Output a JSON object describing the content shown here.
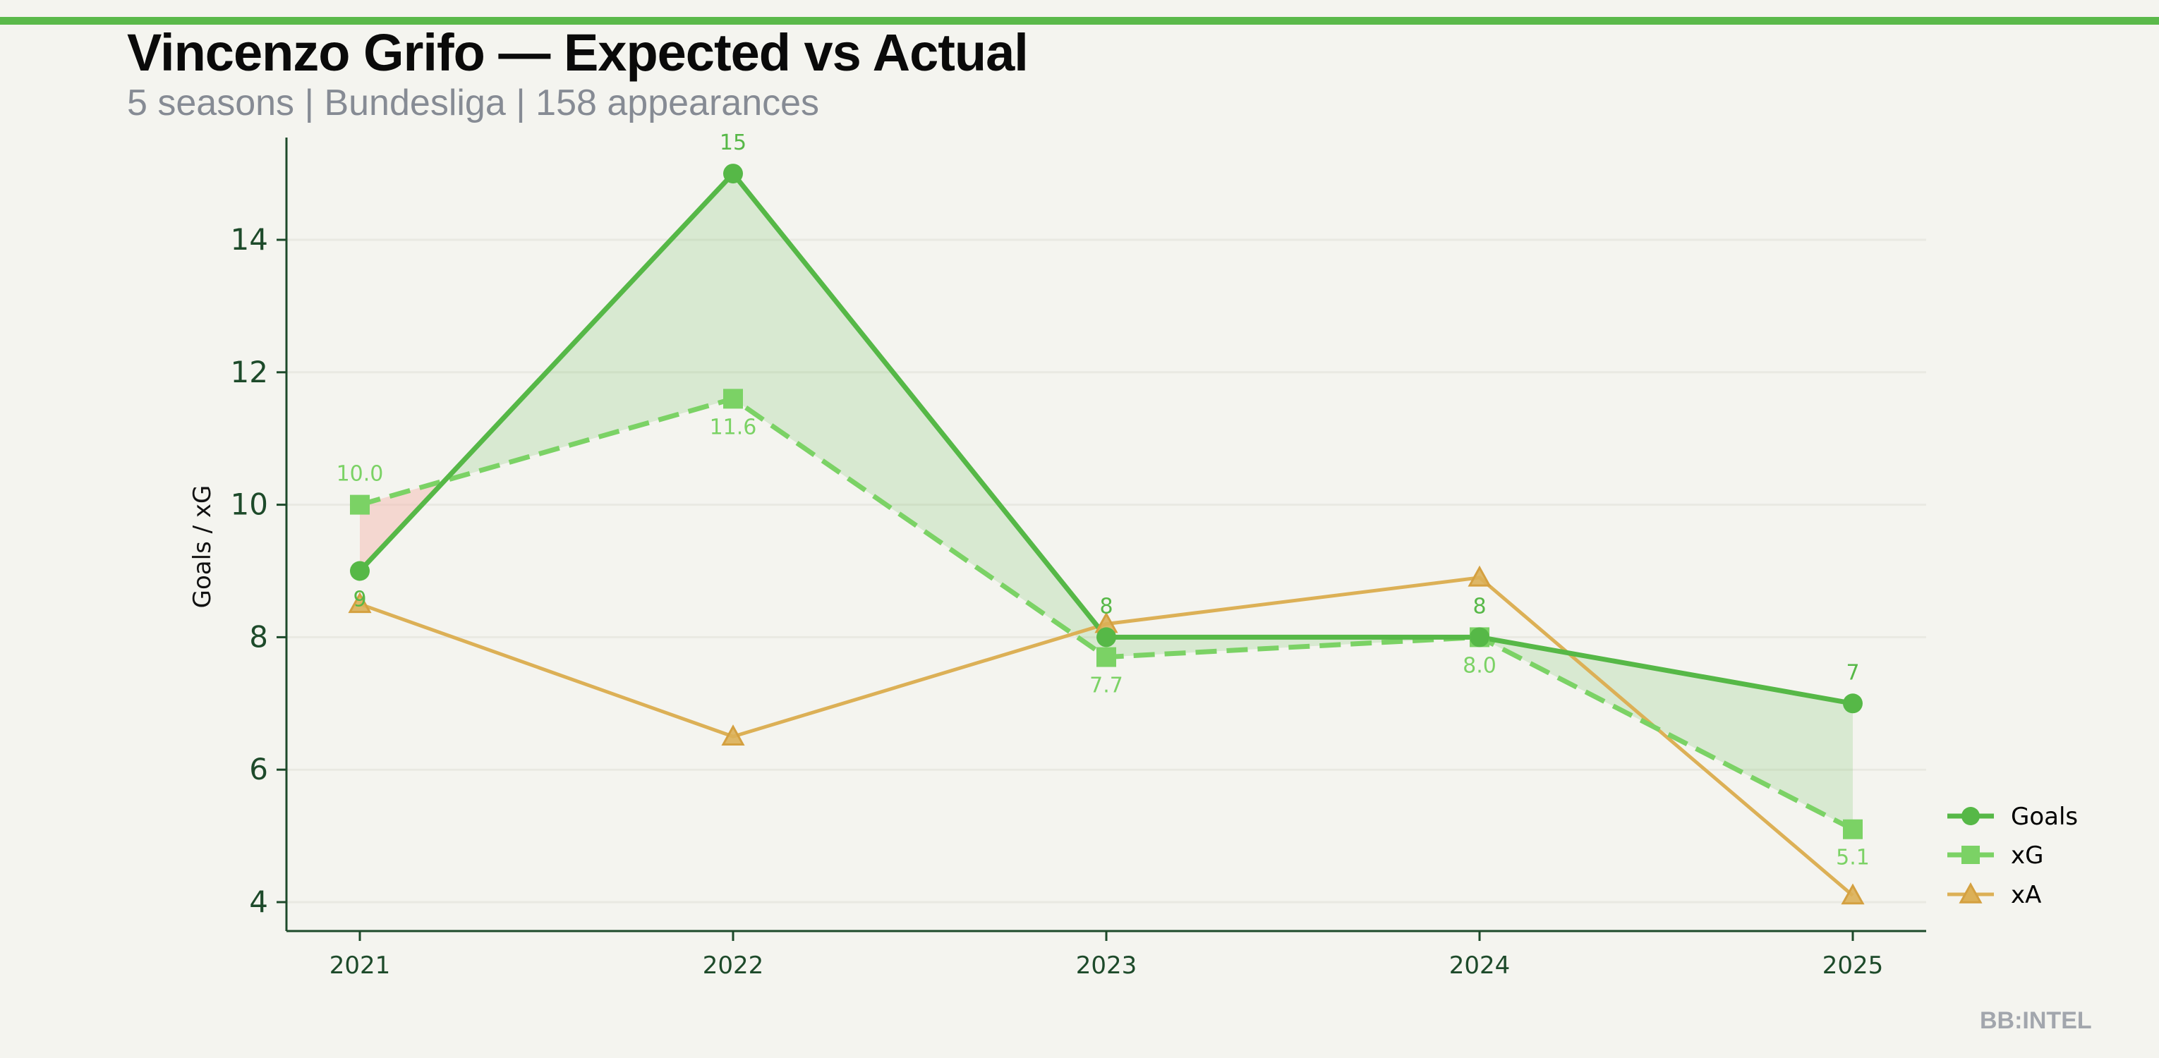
{
  "header": {
    "title": "Vincenzo Grifo — Expected vs Actual",
    "subtitle": "5 seasons | Bundesliga | 158 appearances"
  },
  "brand": "BB:INTEL",
  "colors": {
    "goals": "#56b847",
    "xg": "#7bd265",
    "xa": "#dcb056",
    "over": "#56b847",
    "under": "#f3b4ab",
    "axis": "#1d4a2a"
  },
  "chart_data": {
    "type": "line",
    "title": "Vincenzo Grifo — Expected vs Actual",
    "xlabel": "",
    "ylabel": "Goals / xG",
    "x": [
      2021,
      2022,
      2023,
      2024,
      2025
    ],
    "x_tick_labels": [
      "2021",
      "2022",
      "2023",
      "2024",
      "2025"
    ],
    "y_ticks": [
      4,
      6,
      8,
      10,
      12,
      14
    ],
    "y_tick_labels": [
      "4",
      "6",
      "8",
      "10",
      "12",
      "14"
    ],
    "ylim": [
      3.55,
      15.5
    ],
    "xlim": [
      2020.8,
      2025.2
    ],
    "grid": "horizontal",
    "legend_placement": "lower-right",
    "series": [
      {
        "name": "Goals",
        "values": [
          9,
          15,
          8,
          8,
          7
        ],
        "labels": [
          "9",
          "15",
          "8",
          "8",
          "7"
        ],
        "marker": "circle",
        "style": "solid"
      },
      {
        "name": "xG",
        "values": [
          10.0,
          11.6,
          7.7,
          8.0,
          5.1
        ],
        "labels": [
          "10.0",
          "11.6",
          "7.7",
          "8.0",
          "5.1"
        ],
        "marker": "square",
        "style": "dashed"
      },
      {
        "name": "xA",
        "values": [
          8.5,
          6.5,
          8.2,
          8.9,
          4.1
        ],
        "marker": "triangle",
        "style": "solid"
      }
    ],
    "fill_between": [
      "Goals",
      "xG"
    ]
  }
}
